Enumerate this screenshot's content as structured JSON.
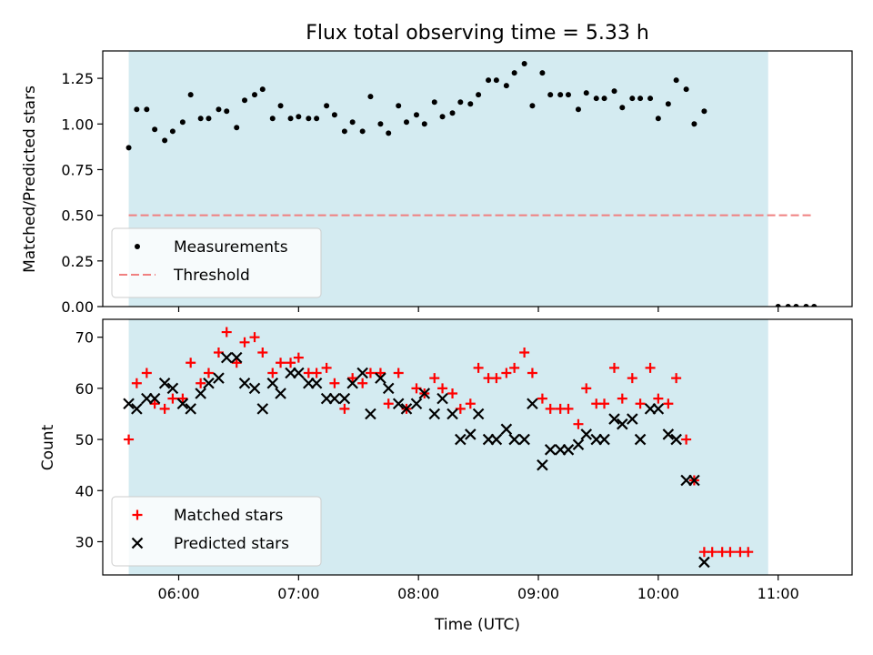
{
  "chart_data": [
    {
      "type": "scatter",
      "title": "Flux total observing time = 5.33 h",
      "xlabel": "",
      "ylabel": "Matched/Predicted stars",
      "xlim": [
        "05:22",
        "11:37"
      ],
      "ylim": [
        0,
        1.4
      ],
      "yticks": [
        0.0,
        0.25,
        0.5,
        0.75,
        1.0,
        1.25
      ],
      "ytick_labels": [
        "0.00",
        "0.25",
        "0.50",
        "0.75",
        "1.00",
        "1.25"
      ],
      "shaded_span": [
        "05:35",
        "10:55"
      ],
      "shade_color": "#d4ebf1",
      "legend_position": "lower-left",
      "series": [
        {
          "name": "Measurements",
          "marker": "dot",
          "color": "#000000",
          "points": [
            [
              "05:35",
              0.87
            ],
            [
              "05:39",
              1.08
            ],
            [
              "05:44",
              1.08
            ],
            [
              "05:48",
              0.97
            ],
            [
              "05:53",
              0.91
            ],
            [
              "05:57",
              0.96
            ],
            [
              "06:02",
              1.01
            ],
            [
              "06:06",
              1.16
            ],
            [
              "06:11",
              1.03
            ],
            [
              "06:15",
              1.03
            ],
            [
              "06:20",
              1.08
            ],
            [
              "06:24",
              1.07
            ],
            [
              "06:29",
              0.98
            ],
            [
              "06:33",
              1.13
            ],
            [
              "06:38",
              1.16
            ],
            [
              "06:42",
              1.19
            ],
            [
              "06:47",
              1.03
            ],
            [
              "06:51",
              1.1
            ],
            [
              "06:56",
              1.03
            ],
            [
              "07:00",
              1.04
            ],
            [
              "07:05",
              1.03
            ],
            [
              "07:09",
              1.03
            ],
            [
              "07:14",
              1.1
            ],
            [
              "07:18",
              1.05
            ],
            [
              "07:23",
              0.96
            ],
            [
              "07:27",
              1.01
            ],
            [
              "07:32",
              0.96
            ],
            [
              "07:36",
              1.15
            ],
            [
              "07:41",
              1.0
            ],
            [
              "07:45",
              0.95
            ],
            [
              "07:50",
              1.1
            ],
            [
              "07:54",
              1.01
            ],
            [
              "07:59",
              1.05
            ],
            [
              "08:03",
              1.0
            ],
            [
              "08:08",
              1.12
            ],
            [
              "08:12",
              1.04
            ],
            [
              "08:17",
              1.06
            ],
            [
              "08:21",
              1.12
            ],
            [
              "08:26",
              1.11
            ],
            [
              "08:30",
              1.16
            ],
            [
              "08:35",
              1.24
            ],
            [
              "08:39",
              1.24
            ],
            [
              "08:44",
              1.21
            ],
            [
              "08:48",
              1.28
            ],
            [
              "08:53",
              1.33
            ],
            [
              "08:57",
              1.1
            ],
            [
              "09:02",
              1.28
            ],
            [
              "09:06",
              1.16
            ],
            [
              "09:11",
              1.16
            ],
            [
              "09:15",
              1.16
            ],
            [
              "09:20",
              1.08
            ],
            [
              "09:24",
              1.17
            ],
            [
              "09:29",
              1.14
            ],
            [
              "09:33",
              1.14
            ],
            [
              "09:38",
              1.18
            ],
            [
              "09:42",
              1.09
            ],
            [
              "09:47",
              1.14
            ],
            [
              "09:51",
              1.14
            ],
            [
              "09:56",
              1.14
            ],
            [
              "10:00",
              1.03
            ],
            [
              "10:05",
              1.11
            ],
            [
              "10:09",
              1.24
            ],
            [
              "10:14",
              1.19
            ],
            [
              "10:18",
              1.0
            ],
            [
              "10:23",
              1.07
            ],
            [
              "11:00",
              0.0
            ],
            [
              "11:05",
              0.0
            ],
            [
              "11:09",
              0.0
            ],
            [
              "11:14",
              0.0
            ],
            [
              "11:18",
              0.0
            ]
          ]
        },
        {
          "name": "Threshold",
          "marker": "dashed-line",
          "color": "#f08080",
          "points": [
            [
              "05:35",
              0.5
            ],
            [
              "11:18",
              0.5
            ]
          ]
        }
      ]
    },
    {
      "type": "scatter",
      "title": "",
      "xlabel": "Time (UTC)",
      "ylabel": "Count",
      "xlim": [
        "05:22",
        "11:37"
      ],
      "ylim": [
        23.5,
        73.5
      ],
      "yticks": [
        30,
        40,
        50,
        60,
        70
      ],
      "ytick_labels": [
        "30",
        "40",
        "50",
        "60",
        "70"
      ],
      "xticks": [
        "06:00",
        "07:00",
        "08:00",
        "09:00",
        "10:00",
        "11:00"
      ],
      "shaded_span": [
        "05:35",
        "10:55"
      ],
      "shade_color": "#d4ebf1",
      "legend_position": "lower-left",
      "series": [
        {
          "name": "Matched stars",
          "marker": "plus",
          "color": "#ff0000",
          "points": [
            [
              "05:35",
              50
            ],
            [
              "05:39",
              61
            ],
            [
              "05:44",
              63
            ],
            [
              "05:48",
              57
            ],
            [
              "05:53",
              56
            ],
            [
              "05:57",
              58
            ],
            [
              "06:02",
              58
            ],
            [
              "06:06",
              65
            ],
            [
              "06:11",
              61
            ],
            [
              "06:15",
              63
            ],
            [
              "06:20",
              67
            ],
            [
              "06:24",
              71
            ],
            [
              "06:29",
              65
            ],
            [
              "06:33",
              69
            ],
            [
              "06:38",
              70
            ],
            [
              "06:42",
              67
            ],
            [
              "06:47",
              63
            ],
            [
              "06:51",
              65
            ],
            [
              "06:56",
              65
            ],
            [
              "07:00",
              66
            ],
            [
              "07:05",
              63
            ],
            [
              "07:09",
              63
            ],
            [
              "07:14",
              64
            ],
            [
              "07:18",
              61
            ],
            [
              "07:23",
              56
            ],
            [
              "07:27",
              62
            ],
            [
              "07:32",
              61
            ],
            [
              "07:36",
              63
            ],
            [
              "07:41",
              63
            ],
            [
              "07:45",
              57
            ],
            [
              "07:50",
              63
            ],
            [
              "07:54",
              56
            ],
            [
              "07:59",
              60
            ],
            [
              "08:03",
              59
            ],
            [
              "08:08",
              62
            ],
            [
              "08:12",
              60
            ],
            [
              "08:17",
              59
            ],
            [
              "08:21",
              56
            ],
            [
              "08:26",
              57
            ],
            [
              "08:30",
              64
            ],
            [
              "08:35",
              62
            ],
            [
              "08:39",
              62
            ],
            [
              "08:44",
              63
            ],
            [
              "08:48",
              64
            ],
            [
              "08:53",
              67
            ],
            [
              "08:57",
              63
            ],
            [
              "09:02",
              58
            ],
            [
              "09:06",
              56
            ],
            [
              "09:11",
              56
            ],
            [
              "09:15",
              56
            ],
            [
              "09:20",
              53
            ],
            [
              "09:24",
              60
            ],
            [
              "09:29",
              57
            ],
            [
              "09:33",
              57
            ],
            [
              "09:38",
              64
            ],
            [
              "09:42",
              58
            ],
            [
              "09:47",
              62
            ],
            [
              "09:51",
              57
            ],
            [
              "09:56",
              64
            ],
            [
              "10:00",
              58
            ],
            [
              "10:05",
              57
            ],
            [
              "10:09",
              62
            ],
            [
              "10:14",
              50
            ],
            [
              "10:18",
              42
            ],
            [
              "10:23",
              28
            ],
            [
              "10:27",
              28
            ],
            [
              "10:32",
              28
            ],
            [
              "10:36",
              28
            ],
            [
              "10:41",
              28
            ],
            [
              "10:45",
              28
            ]
          ]
        },
        {
          "name": "Predicted stars",
          "marker": "x",
          "color": "#000000",
          "points": [
            [
              "05:35",
              57
            ],
            [
              "05:39",
              56
            ],
            [
              "05:44",
              58
            ],
            [
              "05:48",
              58
            ],
            [
              "05:53",
              61
            ],
            [
              "05:57",
              60
            ],
            [
              "06:02",
              57
            ],
            [
              "06:06",
              56
            ],
            [
              "06:11",
              59
            ],
            [
              "06:15",
              61
            ],
            [
              "06:20",
              62
            ],
            [
              "06:24",
              66
            ],
            [
              "06:29",
              66
            ],
            [
              "06:33",
              61
            ],
            [
              "06:38",
              60
            ],
            [
              "06:42",
              56
            ],
            [
              "06:47",
              61
            ],
            [
              "06:51",
              59
            ],
            [
              "06:56",
              63
            ],
            [
              "07:00",
              63
            ],
            [
              "07:05",
              61
            ],
            [
              "07:09",
              61
            ],
            [
              "07:14",
              58
            ],
            [
              "07:18",
              58
            ],
            [
              "07:23",
              58
            ],
            [
              "07:27",
              61
            ],
            [
              "07:32",
              63
            ],
            [
              "07:36",
              55
            ],
            [
              "07:41",
              62
            ],
            [
              "07:45",
              60
            ],
            [
              "07:50",
              57
            ],
            [
              "07:54",
              56
            ],
            [
              "07:59",
              57
            ],
            [
              "08:03",
              59
            ],
            [
              "08:08",
              55
            ],
            [
              "08:12",
              58
            ],
            [
              "08:17",
              55
            ],
            [
              "08:21",
              50
            ],
            [
              "08:26",
              51
            ],
            [
              "08:30",
              55
            ],
            [
              "08:35",
              50
            ],
            [
              "08:39",
              50
            ],
            [
              "08:44",
              52
            ],
            [
              "08:48",
              50
            ],
            [
              "08:53",
              50
            ],
            [
              "08:57",
              57
            ],
            [
              "09:02",
              45
            ],
            [
              "09:06",
              48
            ],
            [
              "09:11",
              48
            ],
            [
              "09:15",
              48
            ],
            [
              "09:20",
              49
            ],
            [
              "09:24",
              51
            ],
            [
              "09:29",
              50
            ],
            [
              "09:33",
              50
            ],
            [
              "09:38",
              54
            ],
            [
              "09:42",
              53
            ],
            [
              "09:47",
              54
            ],
            [
              "09:51",
              50
            ],
            [
              "09:56",
              56
            ],
            [
              "10:00",
              56
            ],
            [
              "10:05",
              51
            ],
            [
              "10:09",
              50
            ],
            [
              "10:14",
              42
            ],
            [
              "10:18",
              42
            ],
            [
              "10:23",
              26
            ]
          ]
        }
      ]
    }
  ]
}
